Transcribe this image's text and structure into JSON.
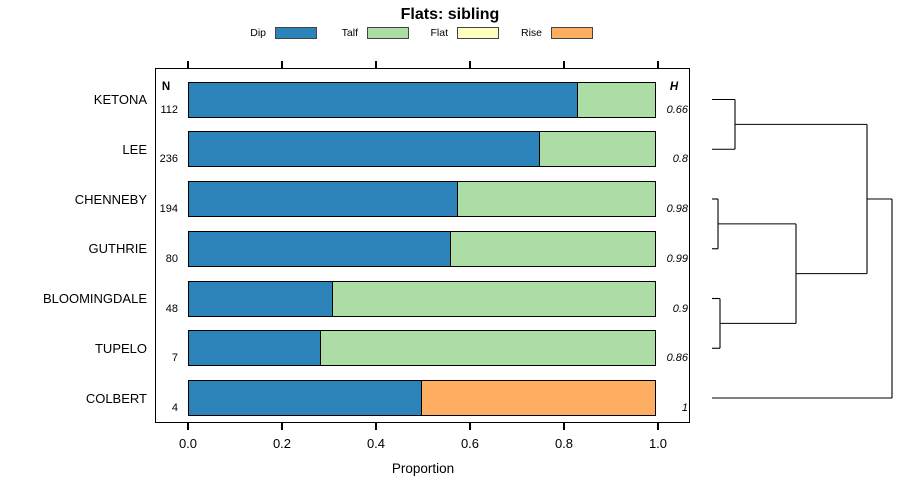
{
  "title": "Flats: sibling",
  "legend": {
    "items": [
      {
        "label": "Dip",
        "color": "#2B83BA"
      },
      {
        "label": "Talf",
        "color": "#ABDDA4"
      },
      {
        "label": "Flat",
        "color": "#FFFFBF"
      },
      {
        "label": "Rise",
        "color": "#FDAE61"
      }
    ]
  },
  "columns": {
    "n_header": "N",
    "h_header": "H"
  },
  "axis": {
    "label": "Proportion",
    "ticks": [
      {
        "value": 0.0,
        "label": "0.0"
      },
      {
        "value": 0.2,
        "label": "0.2"
      },
      {
        "value": 0.4,
        "label": "0.4"
      },
      {
        "value": 0.6,
        "label": "0.6"
      },
      {
        "value": 0.8,
        "label": "0.8"
      },
      {
        "value": 1.0,
        "label": "1.0"
      }
    ]
  },
  "chart_data": {
    "type": "bar",
    "stacked": true,
    "orientation": "horizontal",
    "title": "Flats: sibling",
    "xlabel": "Proportion",
    "xlim": [
      0,
      1
    ],
    "grid": false,
    "legend_position": "top",
    "categories": [
      "KETONA",
      "LEE",
      "CHENNEBY",
      "GUTHRIE",
      "BLOOMINGDALE",
      "TUPELO",
      "COLBERT"
    ],
    "n_values": [
      112,
      236,
      194,
      80,
      48,
      7,
      4
    ],
    "h_values": [
      "0.66",
      "0.8",
      "0.98",
      "0.99",
      "0.9",
      "0.86",
      "1"
    ],
    "series": [
      {
        "name": "Dip",
        "color": "#2B83BA",
        "values": [
          0.83,
          0.75,
          0.575,
          0.56,
          0.31,
          0.285,
          0.5
        ]
      },
      {
        "name": "Talf",
        "color": "#ABDDA4",
        "values": [
          0.17,
          0.25,
          0.425,
          0.44,
          0.69,
          0.715,
          0
        ]
      },
      {
        "name": "Flat",
        "color": "#FFFFBF",
        "values": [
          0,
          0,
          0,
          0,
          0,
          0,
          0
        ]
      },
      {
        "name": "Rise",
        "color": "#FDAE61",
        "values": [
          0,
          0,
          0,
          0,
          0,
          0,
          0.5
        ]
      }
    ],
    "dendrogram": {
      "leaf_x": 712,
      "merges": [
        {
          "id": "m0",
          "a": "KETONA",
          "b": "LEE",
          "x": 735
        },
        {
          "id": "m1",
          "a": "CHENNEBY",
          "b": "GUTHRIE",
          "x": 718
        },
        {
          "id": "m2",
          "a": "BLOOMINGDALE",
          "b": "TUPELO",
          "x": 720
        },
        {
          "id": "m3",
          "a": "m1",
          "b": "m2",
          "x": 796
        },
        {
          "id": "m4",
          "a": "m0",
          "b": "m3",
          "x": 867
        },
        {
          "id": "m5",
          "a": "m4",
          "b": "COLBERT",
          "x": 892
        }
      ]
    }
  }
}
